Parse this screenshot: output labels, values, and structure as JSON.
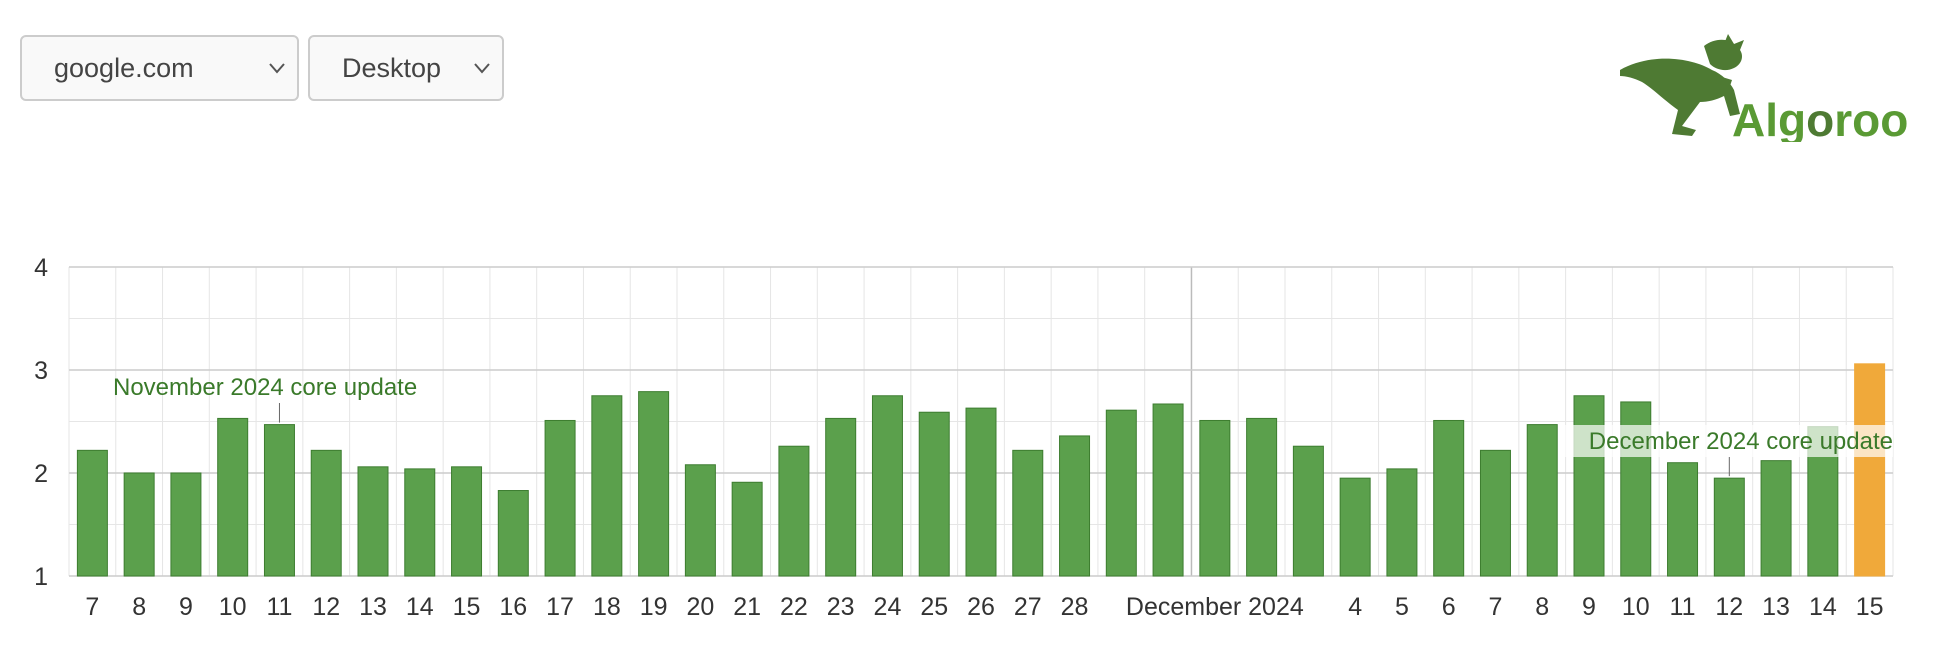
{
  "controls": {
    "site": {
      "selected": "google.com"
    },
    "device": {
      "selected": "Desktop"
    }
  },
  "logo": {
    "text_part1": "Alg",
    "text_part2": "o",
    "text_part3": "roo"
  },
  "colors": {
    "bar": "#5ba04c",
    "bar_border": "#3d7d30",
    "bar_highlight": "#f0a93a",
    "annotation_text": "#3a7a2a",
    "grid": "#e6e6e6",
    "grid_major": "#cccccc",
    "logo_green": "#4e7a33",
    "logo_text_green": "#5a9a34"
  },
  "chart_data": {
    "type": "bar",
    "title": "",
    "xlabel": "",
    "ylabel": "",
    "ylim": [
      1,
      4
    ],
    "yticks": [
      1,
      2,
      3,
      4
    ],
    "grid": true,
    "categories": [
      "Nov 7",
      "Nov 8",
      "Nov 9",
      "Nov 10",
      "Nov 11",
      "Nov 12",
      "Nov 13",
      "Nov 14",
      "Nov 15",
      "Nov 16",
      "Nov 17",
      "Nov 18",
      "Nov 19",
      "Nov 20",
      "Nov 21",
      "Nov 22",
      "Nov 23",
      "Nov 24",
      "Nov 25",
      "Nov 26",
      "Nov 27",
      "Nov 28",
      "Nov 29",
      "Nov 30",
      "Dec 1",
      "Dec 2",
      "Dec 3",
      "Dec 4",
      "Dec 5",
      "Dec 6",
      "Dec 7",
      "Dec 8",
      "Dec 9",
      "Dec 10",
      "Dec 11",
      "Dec 12",
      "Dec 13",
      "Dec 14",
      "Dec 15"
    ],
    "tick_labels": [
      "7",
      "8",
      "9",
      "10",
      "11",
      "12",
      "13",
      "14",
      "15",
      "16",
      "17",
      "18",
      "19",
      "20",
      "21",
      "22",
      "23",
      "24",
      "25",
      "26",
      "27",
      "28",
      "",
      "",
      "December 2024",
      "",
      "",
      "4",
      "5",
      "6",
      "7",
      "8",
      "9",
      "10",
      "11",
      "12",
      "13",
      "14",
      "15"
    ],
    "values": [
      2.22,
      2.0,
      2.0,
      2.53,
      2.47,
      2.22,
      2.06,
      2.04,
      2.06,
      1.83,
      2.51,
      2.75,
      2.79,
      2.08,
      1.91,
      2.26,
      2.53,
      2.75,
      2.59,
      2.63,
      2.22,
      2.36,
      2.61,
      2.67,
      2.51,
      2.53,
      2.26,
      1.95,
      2.04,
      2.51,
      2.22,
      2.47,
      2.75,
      2.69,
      2.1,
      1.95,
      2.12,
      2.45,
      3.06
    ],
    "highlight_index": 38,
    "annotations": [
      {
        "label": "November 2024 core update",
        "index": 4
      },
      {
        "label": "December 2024 core update",
        "index": 35
      }
    ]
  }
}
